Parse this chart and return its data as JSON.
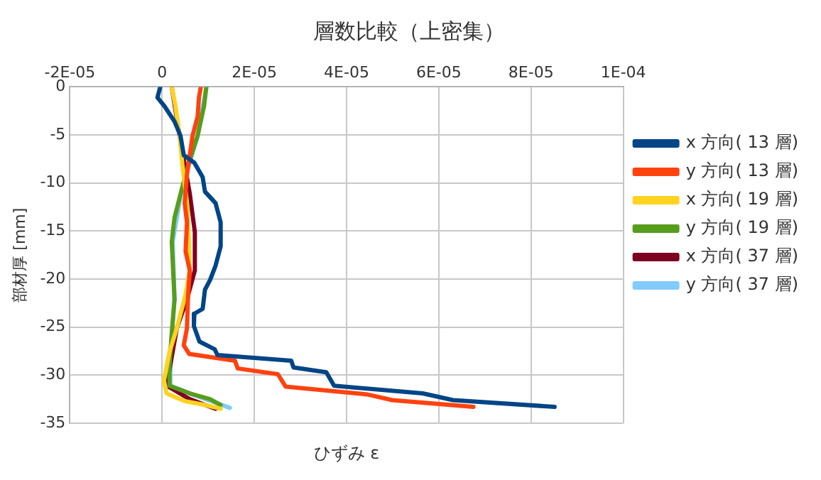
{
  "chart_data": {
    "type": "line",
    "title": "層数比較（上密集）",
    "xlabel": "ひずみ ε",
    "ylabel": "部材厚 [mm]",
    "xlim": [
      -2e-05,
      0.0001
    ],
    "xticks": [
      {
        "value": -2e-05,
        "label": "-2E-05"
      },
      {
        "value": 0,
        "label": "0"
      },
      {
        "value": 2e-05,
        "label": "2E-05"
      },
      {
        "value": 4e-05,
        "label": "4E-05"
      },
      {
        "value": 6e-05,
        "label": "6E-05"
      },
      {
        "value": 8e-05,
        "label": "8E-05"
      },
      {
        "value": 0.0001,
        "label": "1E-04"
      }
    ],
    "ylim": [
      -35,
      0
    ],
    "yticks": [
      -35,
      -30,
      -25,
      -20,
      -15,
      -10,
      -5,
      0
    ],
    "grid": true,
    "legend": "right",
    "marker": "none",
    "line_style": "solid",
    "series": [
      {
        "name": "x 方向( 13 層)",
        "color": "#004586",
        "x": [
          -4e-07,
          -1e-06,
          5e-07,
          2.7e-06,
          4e-06,
          4.7e-06,
          7e-06,
          8.8e-06,
          9.3e-06,
          1.16e-05,
          1.27e-05,
          1.27e-05,
          1.16e-05,
          1.04e-05,
          9.3e-06,
          8.8e-06,
          7e-06,
          6.9e-06,
          8.1e-06,
          1.14e-05,
          1.2e-05,
          2.8e-05,
          2.85e-05,
          3.56e-05,
          3.73e-05,
          5.65e-05,
          6.31e-05,
          8.51e-05
        ],
        "values": [
          0,
          -1.1,
          -2,
          -3.6,
          -5.1,
          -7.1,
          -7.9,
          -9.4,
          -10.9,
          -12.1,
          -14.1,
          -16.6,
          -18.6,
          -20.1,
          -21.1,
          -23.1,
          -23.6,
          -24.9,
          -26.5,
          -27.3,
          -27.9,
          -28.5,
          -29.2,
          -29.7,
          -31.1,
          -31.9,
          -32.6,
          -33.3
        ]
      },
      {
        "name": "y 方向( 13 層)",
        "color": "#ff420e",
        "x": [
          8.4e-06,
          8e-06,
          7.7e-06,
          6.6e-06,
          6e-06,
          5.4e-06,
          4.9e-06,
          5.4e-06,
          5.1e-06,
          6e-06,
          5.6e-06,
          5.4e-06,
          4.7e-06,
          5.9e-06,
          1.58e-05,
          1.64e-05,
          2.51e-05,
          2.68e-05,
          4.44e-05,
          4.99e-05,
          6.75e-05
        ],
        "values": [
          0,
          -1.1,
          -3.1,
          -5.1,
          -7.1,
          -9.1,
          -12.1,
          -14.1,
          -17.1,
          -19.1,
          -22.1,
          -25.1,
          -26.9,
          -27.8,
          -28.5,
          -29.3,
          -29.9,
          -31.2,
          -32,
          -32.6,
          -33.3
        ]
      },
      {
        "name": "x 方向( 19 層)",
        "color": "#ffd320",
        "x": [
          2.1e-06,
          2.9e-06,
          3.8e-06,
          4.4e-06,
          5.4e-06,
          5.8e-06,
          6e-06,
          5.1e-06,
          3.2e-06,
          1.6e-06,
          4e-07,
          1e-06,
          4.9e-06,
          9.3e-06,
          1.27e-05
        ],
        "values": [
          0,
          -2,
          -5.1,
          -8.1,
          -12.1,
          -16.1,
          -19.1,
          -21.6,
          -25.1,
          -27.6,
          -30.6,
          -31.9,
          -32.7,
          -33.1,
          -33.5
        ]
      },
      {
        "name": "y 方向( 19 層)",
        "color": "#579d1c",
        "x": [
          9.6e-06,
          9.1e-06,
          7.7e-06,
          6e-06,
          4.3e-06,
          2.7e-06,
          2.1e-06,
          2.4e-06,
          2.7e-06,
          2.1e-06,
          1.6e-06,
          1.6e-06,
          6e-06,
          1.04e-05,
          1.27e-05
        ],
        "values": [
          0,
          -2,
          -5.1,
          -7.6,
          -10.6,
          -13.6,
          -16.1,
          -19.1,
          -22.1,
          -25.6,
          -29.1,
          -31.1,
          -31.9,
          -32.5,
          -33.1
        ]
      },
      {
        "name": "x 方向( 37 層)",
        "color": "#7e0021",
        "x": [
          2.1e-06,
          3.8e-06,
          6e-06,
          7.1e-06,
          7.1e-06,
          5.4e-06,
          3.2e-06,
          1e-06,
          6e-06,
          1.16e-05
        ],
        "values": [
          0,
          -5.1,
          -11.1,
          -15.1,
          -19.1,
          -22.1,
          -25.1,
          -31.1,
          -32.5,
          -33.5
        ]
      },
      {
        "name": "y 方向( 37 層)",
        "color": "#83caff",
        "x": [
          9.6e-06,
          7.7e-06,
          4.3e-06,
          2.3e-06,
          2.7e-06,
          1.6e-06,
          1.8e-06,
          7.1e-06,
          1.47e-05
        ],
        "values": [
          0,
          -5.1,
          -10.6,
          -16.1,
          -22.1,
          -29.1,
          -31.1,
          -32.1,
          -33.4
        ]
      }
    ]
  }
}
